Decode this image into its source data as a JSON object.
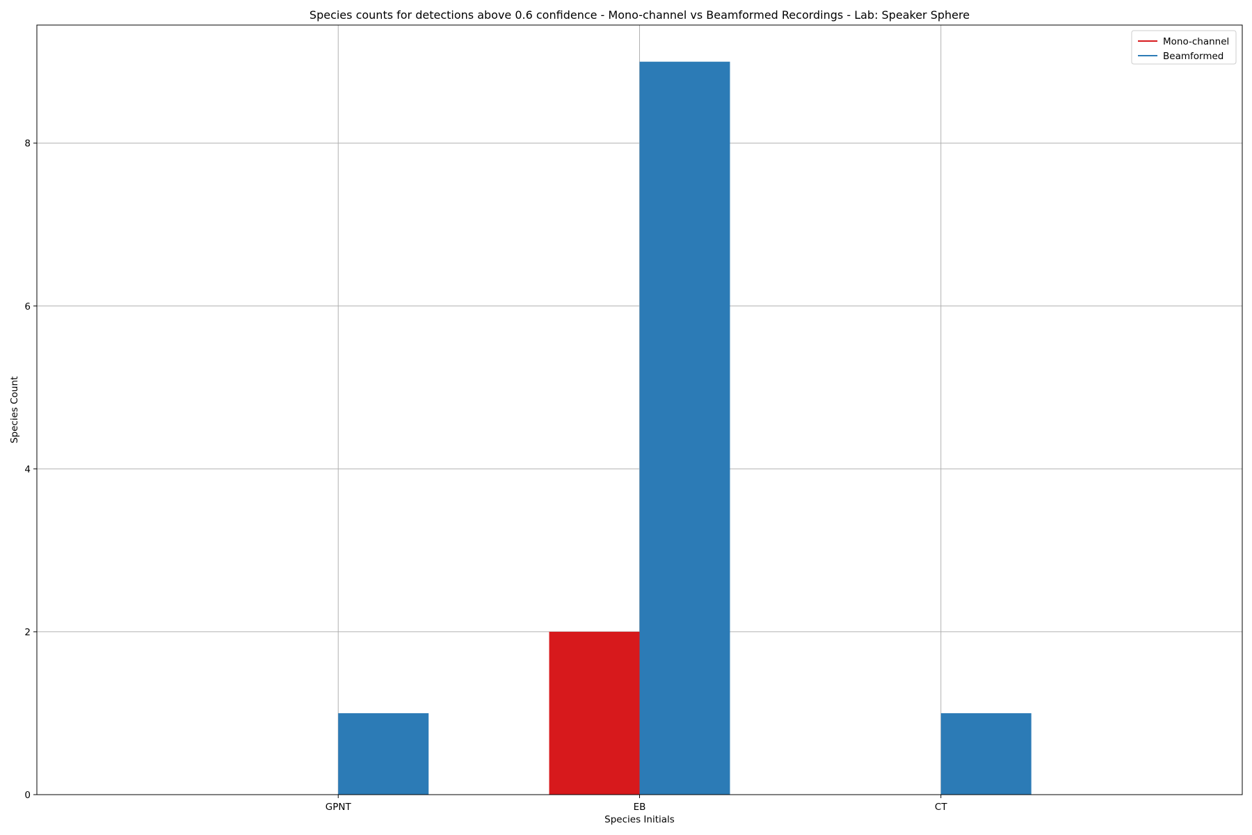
{
  "chart_data": {
    "type": "bar",
    "title": "Species counts for detections above 0.6 confidence - Mono-channel vs Beamformed Recordings - Lab: Speaker Sphere",
    "xlabel": "Species Initials",
    "ylabel": "Species Count",
    "categories": [
      "GPNT",
      "EB",
      "CT"
    ],
    "series": [
      {
        "name": "Mono-channel",
        "values": [
          0,
          2,
          0
        ],
        "color": "#d7191c"
      },
      {
        "name": "Beamformed",
        "values": [
          1,
          9,
          1
        ],
        "color": "#2c7bb6"
      }
    ],
    "ylim": [
      0,
      9.45
    ],
    "yticks": [
      0,
      2,
      4,
      6,
      8
    ],
    "grid": true,
    "legend_position": "top-right"
  }
}
